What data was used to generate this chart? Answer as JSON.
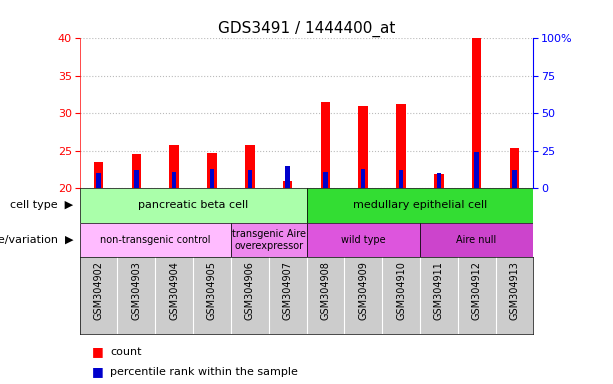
{
  "title": "GDS3491 / 1444400_at",
  "samples": [
    "GSM304902",
    "GSM304903",
    "GSM304904",
    "GSM304905",
    "GSM304906",
    "GSM304907",
    "GSM304908",
    "GSM304909",
    "GSM304910",
    "GSM304911",
    "GSM304912",
    "GSM304913"
  ],
  "count_values": [
    23.5,
    24.5,
    25.7,
    24.7,
    25.7,
    21.0,
    31.5,
    31.0,
    31.2,
    21.9,
    40.0,
    25.4
  ],
  "percentile_values": [
    10,
    12,
    11,
    13,
    12,
    15,
    11,
    13,
    12,
    10,
    24,
    12
  ],
  "ylim_left": [
    20,
    40
  ],
  "ylim_right": [
    0,
    100
  ],
  "yticks_left": [
    20,
    25,
    30,
    35,
    40
  ],
  "yticks_right": [
    0,
    25,
    50,
    75,
    100
  ],
  "ytick_labels_right": [
    "0",
    "25",
    "50",
    "75",
    "100%"
  ],
  "bar_color_red": "#ff0000",
  "bar_color_blue": "#0000cc",
  "background_color": "#ffffff",
  "cell_type_groups": [
    {
      "label": "pancreatic beta cell",
      "start": 0,
      "end": 5,
      "color": "#aaffaa"
    },
    {
      "label": "medullary epithelial cell",
      "start": 6,
      "end": 11,
      "color": "#33dd33"
    }
  ],
  "genotype_groups": [
    {
      "label": "non-transgenic control",
      "start": 0,
      "end": 3,
      "color": "#ffbbff"
    },
    {
      "label": "transgenic Aire\noverexpressor",
      "start": 4,
      "end": 5,
      "color": "#ee88ee"
    },
    {
      "label": "wild type",
      "start": 6,
      "end": 8,
      "color": "#dd55dd"
    },
    {
      "label": "Aire null",
      "start": 9,
      "end": 11,
      "color": "#cc44cc"
    }
  ],
  "left_label_color": "#ff0000",
  "right_label_color": "#0000ff",
  "grid_color": "#bbbbbb",
  "tick_area_color": "#cccccc",
  "bar_width": 0.25,
  "blue_bar_width": 0.12
}
